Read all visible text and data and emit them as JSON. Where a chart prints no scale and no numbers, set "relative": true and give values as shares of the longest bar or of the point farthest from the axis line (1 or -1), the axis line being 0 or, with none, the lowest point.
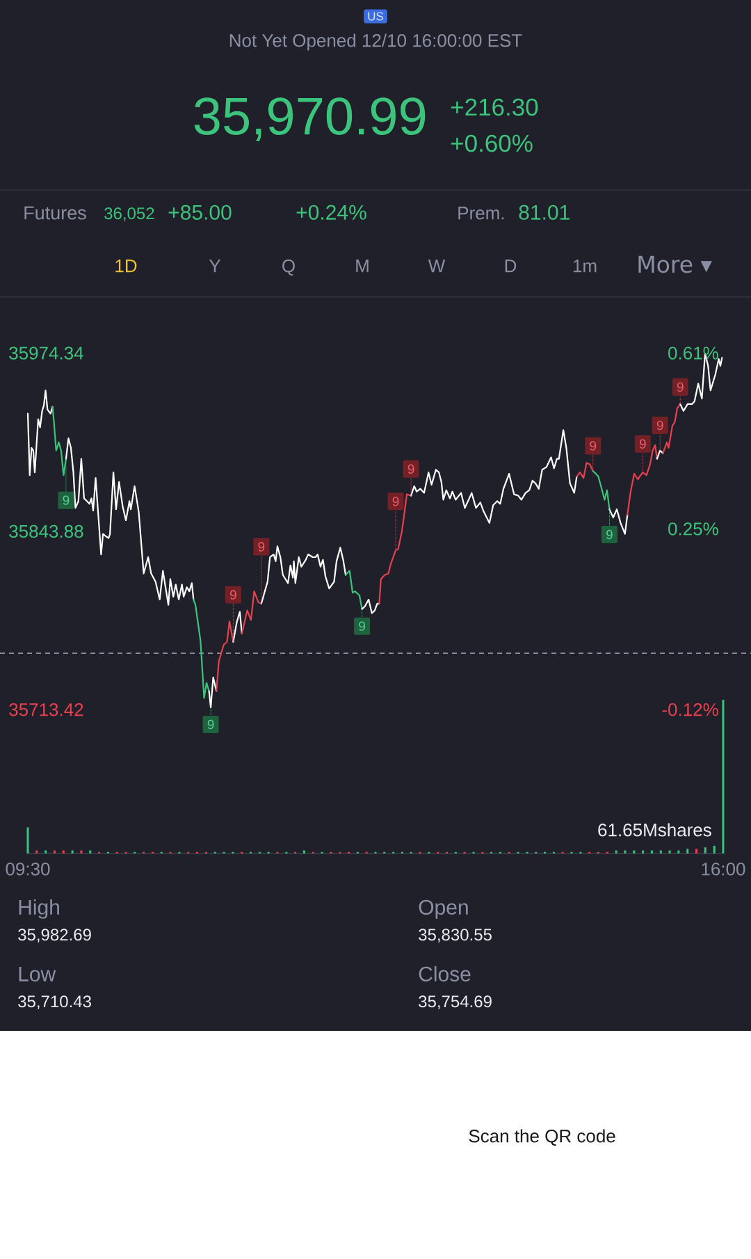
{
  "chart_data": [
    {
      "type": "line",
      "subtitle": "Not Yet Opened 12/10 16:00:00 EST",
      "series": [
        {
          "color": "#ffffff",
          "x": [
            9.5,
            9.518,
            9.535,
            9.551,
            9.565,
            9.597,
            9.615,
            9.634,
            9.65,
            9.666,
            9.684,
            9.712,
            9.731
          ],
          "values": [
            35930,
            35885,
            35905,
            35903,
            35887,
            35926,
            35920,
            35932,
            35936,
            35947,
            35933,
            35930,
            35935
          ]
        },
        {
          "color": "#3cc47c",
          "x": [
            9.731,
            9.744,
            9.765,
            9.79,
            9.811,
            9.834,
            9.857
          ],
          "values": [
            35935,
            35924,
            35903,
            35909,
            35903,
            35885,
            35897
          ]
        },
        {
          "color": "#ffffff",
          "x": [
            9.857,
            9.88,
            9.903,
            9.926,
            9.945,
            9.973,
            10,
            10.026,
            10.053,
            10.076,
            10.095,
            10.111,
            10.134,
            10.185,
            10.203,
            10.233,
            10.256,
            10.268,
            10.3,
            10.325,
            10.353,
            10.387,
            10.417,
            10.45,
            10.463,
            10.498,
            10.537,
            10.583,
            10.625,
            10.653,
            10.694,
            10.733,
            10.763,
            10.814,
            10.832,
            10.86,
            10.883,
            10.911,
            10.941,
            10.957,
            10.987,
            11.01,
            11.033,
            11.049
          ],
          "values": [
            35897,
            35912,
            35905,
            35887,
            35861,
            35866,
            35897,
            35868,
            35866,
            35864,
            35868,
            35859,
            35883,
            35827,
            35842,
            35840,
            35839,
            35842,
            35887,
            35860,
            35880,
            35862,
            35852,
            35866,
            35860,
            35877,
            35858,
            35813,
            35825,
            35813,
            35807,
            35794,
            35815,
            35790,
            35809,
            35796,
            35805,
            35794,
            35805,
            35796,
            35803,
            35800,
            35806,
            35794
          ]
        },
        {
          "color": "#3cc47c",
          "x": [
            11.049,
            11.067,
            11.114,
            11.148,
            11.171,
            11.194
          ],
          "values": [
            35794,
            35790,
            35764,
            35722,
            35733,
            35727
          ]
        },
        {
          "color": "#ffffff",
          "x": [
            11.194,
            11.21,
            11.233,
            11.263
          ],
          "values": [
            35727,
            35715,
            35737,
            35727
          ]
        },
        {
          "color": "#e8404f",
          "x": [
            11.263,
            11.286,
            11.332,
            11.362,
            11.385,
            11.42
          ],
          "values": [
            35727,
            35749,
            35761,
            35763,
            35778,
            35763
          ]
        },
        {
          "color": "#ffffff",
          "x": [
            11.42,
            11.455,
            11.482,
            11.501
          ],
          "values": [
            35763,
            35778,
            35785,
            35769
          ]
        },
        {
          "color": "#e8404f",
          "x": [
            11.501,
            11.551,
            11.586,
            11.616,
            11.655,
            11.683
          ],
          "values": [
            35769,
            35786,
            35779,
            35800,
            35792,
            35791
          ]
        },
        {
          "color": "#ffffff",
          "x": [
            11.683,
            11.741,
            11.764,
            11.798,
            11.817,
            11.833,
            11.861,
            11.884,
            11.932,
            11.955,
            11.978,
            11.987,
            12.001,
            12.033,
            12.057,
            12.098,
            12.121,
            12.163,
            12.19,
            12.209,
            12.236,
            12.259,
            12.282,
            12.317,
            12.363,
            12.386,
            12.421,
            12.448,
            12.471
          ],
          "values": [
            35791,
            35807,
            35825,
            35827,
            35822,
            35833,
            35825,
            35812,
            35806,
            35819,
            35810,
            35822,
            35806,
            35825,
            35818,
            35823,
            35827,
            35825,
            35825,
            35827,
            35818,
            35823,
            35811,
            35802,
            35807,
            35822,
            35832,
            35823,
            35812
          ]
        },
        {
          "color": "#3cc47c",
          "x": [
            12.471,
            12.508,
            12.536,
            12.559,
            12.6,
            12.624
          ],
          "values": [
            35812,
            35815,
            35799,
            35800,
            35797,
            35787
          ]
        },
        {
          "color": "#ffffff",
          "x": [
            12.624,
            12.651,
            12.686,
            12.716,
            12.743,
            12.766,
            12.785
          ],
          "values": [
            35787,
            35789,
            35794,
            35784,
            35786,
            35791,
            35791
          ]
        },
        {
          "color": "#e8404f",
          "x": [
            12.785,
            12.801,
            12.836,
            12.87,
            12.893,
            12.939,
            12.962,
            12.997,
            13.015,
            13.043,
            13.082
          ],
          "values": [
            35791,
            35809,
            35812,
            35813,
            35820,
            35830,
            35831,
            35844,
            35854,
            35871,
            35870
          ]
        },
        {
          "color": "#ffffff",
          "x": [
            13.082,
            13.112,
            13.135,
            13.17,
            13.204,
            13.246,
            13.274,
            13.315,
            13.343,
            13.366,
            13.384,
            13.412,
            13.446,
            13.469,
            13.499,
            13.55,
            13.585,
            13.615,
            13.649,
            13.689,
            13.73,
            13.758,
            13.815,
            13.85,
            13.888,
            13.916,
            13.946,
            13.999,
            14.045,
            14.084,
            14.114,
            14.153,
            14.188,
            14.218,
            14.246,
            14.276,
            14.308,
            14.349,
            14.391,
            14.419,
            14.446,
            14.465,
            14.506,
            14.534,
            14.568,
            14.608,
            14.631
          ],
          "values": [
            35870,
            35877,
            35873,
            35875,
            35872,
            35887,
            35878,
            35889,
            35887,
            35880,
            35867,
            35874,
            35868,
            35873,
            35867,
            35872,
            35861,
            35866,
            35872,
            35861,
            35865,
            35859,
            35850,
            35863,
            35866,
            35864,
            35875,
            35886,
            35871,
            35870,
            35867,
            35872,
            35874,
            35881,
            35879,
            35875,
            35889,
            35891,
            35898,
            35890,
            35897,
            35897,
            35918,
            35905,
            35879,
            35872,
            35884
          ]
        },
        {
          "color": "#e8404f",
          "x": [
            14.631,
            14.661,
            14.695,
            14.723,
            14.753,
            14.783
          ],
          "values": [
            35884,
            35887,
            35883,
            35894,
            35893,
            35888
          ]
        },
        {
          "color": "#3cc47c",
          "x": [
            14.783,
            14.81,
            14.833,
            14.868,
            14.891,
            14.914,
            14.937
          ],
          "values": [
            35888,
            35886,
            35884,
            35874,
            35867,
            35874,
            35860
          ]
        },
        {
          "color": "#ffffff",
          "x": [
            14.937,
            14.972,
            15.006,
            15.041,
            15.082,
            15.105
          ],
          "values": [
            35860,
            35854,
            35860,
            35850,
            35842,
            35856
          ]
        },
        {
          "color": "#e8404f",
          "x": [
            15.105,
            15.133,
            15.168,
            15.202,
            15.248,
            15.283,
            15.317,
            15.341,
            15.364,
            15.382
          ],
          "values": [
            35856,
            35872,
            35886,
            35882,
            35887,
            35885,
            35893,
            35903,
            35907,
            35897
          ]
        },
        {
          "color": "#ffffff",
          "x": [
            15.382,
            15.41,
            15.437
          ],
          "values": [
            35897,
            35903,
            35901
          ]
        },
        {
          "color": "#e8404f",
          "x": [
            15.437,
            15.474,
            15.49,
            15.525,
            15.548,
            15.571,
            15.599
          ],
          "values": [
            35901,
            35909,
            35905,
            35921,
            35924,
            35934,
            35937
          ]
        },
        {
          "color": "#ffffff",
          "x": [
            15.599,
            15.629,
            15.668,
            15.709,
            15.732,
            15.767,
            15.801,
            15.831,
            15.859,
            15.882,
            15.928,
            15.958,
            15.974,
            15.99
          ],
          "values": [
            35937,
            35932,
            35937,
            35937,
            35939,
            35952,
            35941,
            35974,
            35965,
            35947,
            35959,
            35970,
            35965,
            35971
          ]
        }
      ],
      "xlim": [
        9.5,
        16
      ],
      "ylim": [
        35713.42,
        35974.34
      ],
      "yticks": [
        35974.34,
        35843.88,
        35713.42
      ],
      "y2lim": [
        -0.12,
        0.61
      ],
      "y2ticks": [
        {
          "value": 0.61,
          "label": "0.61%"
        },
        {
          "value": 0.25,
          "label": "0.25%"
        },
        {
          "value": -0.12,
          "label": "-0.12%"
        }
      ],
      "tick_labels": "y",
      "ref_lines": [
        {
          "axis": "y",
          "value": 35754.69,
          "color": "#8a8fa3",
          "line_style": "dashed"
        }
      ],
      "annotations": [
        "US",
        "35,970.99",
        "+216.30",
        "+0.60%",
        "Futures",
        "36,052",
        "+85.00",
        "+0.24%",
        "Prem.",
        "81.01",
        "1D",
        "Y",
        "Q",
        "M",
        "W",
        "D",
        "1m",
        "More ▾",
        {
          "text": "9",
          "x": 9.857,
          "y": 35897
        },
        {
          "text": "9",
          "x": 11.21,
          "y": 35715
        },
        {
          "text": "9",
          "x": 11.42,
          "y": 35763
        },
        {
          "text": "9",
          "x": 11.683,
          "y": 35791
        },
        {
          "text": "9",
          "x": 12.624,
          "y": 35787
        },
        {
          "text": "9",
          "x": 12.939,
          "y": 35830
        },
        {
          "text": "9",
          "x": 13.082,
          "y": 35870
        },
        {
          "text": "9",
          "x": 14.783,
          "y": 35888
        },
        {
          "text": "9",
          "x": 14.937,
          "y": 35860
        },
        {
          "text": "9",
          "x": 15.248,
          "y": 35887
        },
        {
          "text": "9",
          "x": 15.41,
          "y": 35903
        },
        {
          "text": "9",
          "x": 15.599,
          "y": 35937
        }
      ]
    },
    {
      "type": "bar",
      "relative": true,
      "x": [
        9.5,
        9.583,
        9.667,
        9.75,
        9.833,
        9.917,
        10,
        10.083,
        10.167,
        10.25,
        10.333,
        10.417,
        10.5,
        10.583,
        10.667,
        10.75,
        10.833,
        10.917,
        11,
        11.083,
        11.167,
        11.25,
        11.333,
        11.417,
        11.5,
        11.583,
        11.667,
        11.75,
        11.833,
        11.917,
        12,
        12.083,
        12.167,
        12.25,
        12.333,
        12.417,
        12.5,
        12.583,
        12.667,
        12.75,
        12.833,
        12.917,
        13,
        13.083,
        13.167,
        13.25,
        13.333,
        13.417,
        13.5,
        13.583,
        13.667,
        13.75,
        13.833,
        13.917,
        14,
        14.083,
        14.167,
        14.25,
        14.333,
        14.417,
        14.5,
        14.583,
        14.667,
        14.75,
        14.833,
        14.917,
        15,
        15.083,
        15.167,
        15.25,
        15.333,
        15.417,
        15.5,
        15.583,
        15.667,
        15.75,
        15.833,
        15.917,
        16
      ],
      "values": [
        0.17,
        0.02,
        0.02,
        0.02,
        0.02,
        0.02,
        0.02,
        0.02,
        0.01,
        0.01,
        0.01,
        0.01,
        0.01,
        0.01,
        0.01,
        0.01,
        0.01,
        0.01,
        0.01,
        0.01,
        0.01,
        0.01,
        0.01,
        0.01,
        0.01,
        0.01,
        0.01,
        0.01,
        0.01,
        0.01,
        0.01,
        0.02,
        0.01,
        0.01,
        0.01,
        0.01,
        0.01,
        0.01,
        0.01,
        0.01,
        0.01,
        0.01,
        0.01,
        0.01,
        0.01,
        0.01,
        0.01,
        0.01,
        0.01,
        0.01,
        0.01,
        0.01,
        0.01,
        0.01,
        0.01,
        0.01,
        0.01,
        0.01,
        0.01,
        0.01,
        0.01,
        0.01,
        0.01,
        0.01,
        0.01,
        0.01,
        0.02,
        0.02,
        0.02,
        0.02,
        0.02,
        0.02,
        0.02,
        0.02,
        0.03,
        0.03,
        0.04,
        0.05,
        1
      ],
      "colors": [
        "#3cc47c",
        "#e8404f",
        "#3cc47c",
        "#e8404f",
        "#e8404f",
        "#3cc47c",
        "#e8404f",
        "#3cc47c",
        "#e8404f",
        "#3cc47c",
        "#e8404f",
        "#e8404f",
        "#3cc47c",
        "#e8404f",
        "#e8404f",
        "#3cc47c",
        "#e8404f",
        "#3cc47c",
        "#e8404f",
        "#e8404f",
        "#e8404f",
        "#3cc47c",
        "#3cc47c",
        "#3cc47c",
        "#e8404f",
        "#3cc47c",
        "#3cc47c",
        "#3cc47c",
        "#e8404f",
        "#3cc47c",
        "#e8404f",
        "#3cc47c",
        "#e8404f",
        "#3cc47c",
        "#e8404f",
        "#e8404f",
        "#e8404f",
        "#3cc47c",
        "#e8404f",
        "#3cc47c",
        "#3cc47c",
        "#3cc47c",
        "#3cc47c",
        "#3cc47c",
        "#e8404f",
        "#3cc47c",
        "#e8404f",
        "#e8404f",
        "#3cc47c",
        "#e8404f",
        "#3cc47c",
        "#e8404f",
        "#3cc47c",
        "#3cc47c",
        "#e8404f",
        "#3cc47c",
        "#3cc47c",
        "#3cc47c",
        "#3cc47c",
        "#3cc47c",
        "#e8404f",
        "#3cc47c",
        "#3cc47c",
        "#e8404f",
        "#e8404f",
        "#e8404f",
        "#3cc47c",
        "#3cc47c",
        "#3cc47c",
        "#3cc47c",
        "#3cc47c",
        "#3cc47c",
        "#3cc47c",
        "#3cc47c",
        "#3cc47c",
        "#e8404f",
        "#3cc47c",
        "#3cc47c",
        "#3cc47c"
      ],
      "xlim": [
        9.5,
        16
      ],
      "xticks": [
        {
          "value": 9.5,
          "label": "09:30"
        },
        {
          "value": 16,
          "label": "16:00"
        }
      ],
      "tick_labels": "x",
      "annotations": [
        "61.65Mshares"
      ]
    },
    {
      "type": "other",
      "annotations": [
        "High",
        "35,982.69",
        "Open",
        "35,830.55",
        "Low",
        "35,710.43",
        "Close",
        "35,754.69",
        "Scan the QR code"
      ]
    }
  ]
}
